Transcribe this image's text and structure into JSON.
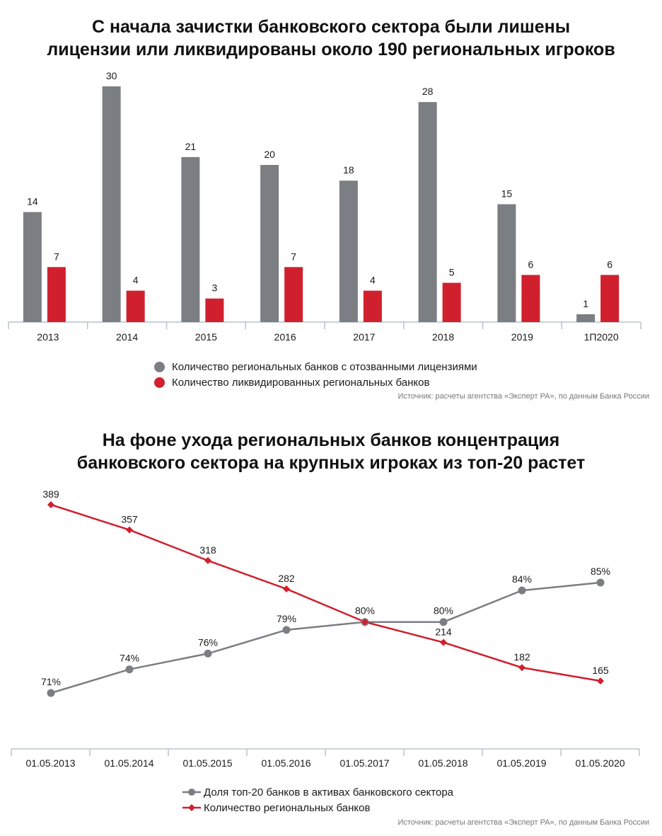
{
  "chart_data": [
    {
      "type": "bar",
      "title": [
        "С начала зачистки банковского сектора были лишены",
        "лицензии или ликвидированы около 190 региональных игроков"
      ],
      "categories": [
        "2013",
        "2014",
        "2015",
        "2016",
        "2017",
        "2018",
        "2019",
        "1П2020"
      ],
      "series": [
        {
          "name": "Количество региональных банков с отозванными лицензиями",
          "color": "#7b7e82",
          "values": [
            14,
            30,
            21,
            20,
            18,
            28,
            15,
            1
          ]
        },
        {
          "name": "Количество ликвидированных региональных банков",
          "color": "#d0202e",
          "values": [
            7,
            4,
            3,
            7,
            4,
            5,
            6,
            6
          ]
        }
      ],
      "ylim": [
        0,
        30
      ],
      "grid": false,
      "legend": "bottom",
      "source": "Источник: расчеты агентства «Эксперт РА», по данным Банка России"
    },
    {
      "type": "line",
      "title": [
        "На фоне ухода региональных банков концентрация",
        "банковского сектора на крупных игроках из топ-20 растет"
      ],
      "categories": [
        "01.05.2013",
        "01.05.2014",
        "01.05.2015",
        "01.05.2016",
        "01.05.2017",
        "01.05.2018",
        "01.05.2019",
        "01.05.2020"
      ],
      "series": [
        {
          "name": "Доля топ-20 банков в активах банковского сектора",
          "color": "#7b7e82",
          "marker": "circle",
          "values": [
            71,
            74,
            76,
            79,
            80,
            80,
            84,
            85
          ],
          "labels": [
            "71%",
            "74%",
            "76%",
            "79%",
            "80%",
            "80%",
            "84%",
            "85%"
          ]
        },
        {
          "name": "Количество региональных банков",
          "color": "#d0202e",
          "marker": "diamond",
          "values": [
            389,
            357,
            318,
            282,
            240,
            214,
            182,
            165
          ],
          "labels": [
            "389",
            "357",
            "318",
            "282",
            "",
            "214",
            "182",
            "165"
          ]
        }
      ],
      "grid": false,
      "legend": "bottom",
      "source": "Источник: расчеты агентства «Эксперт РА», по данным Банка России"
    }
  ]
}
